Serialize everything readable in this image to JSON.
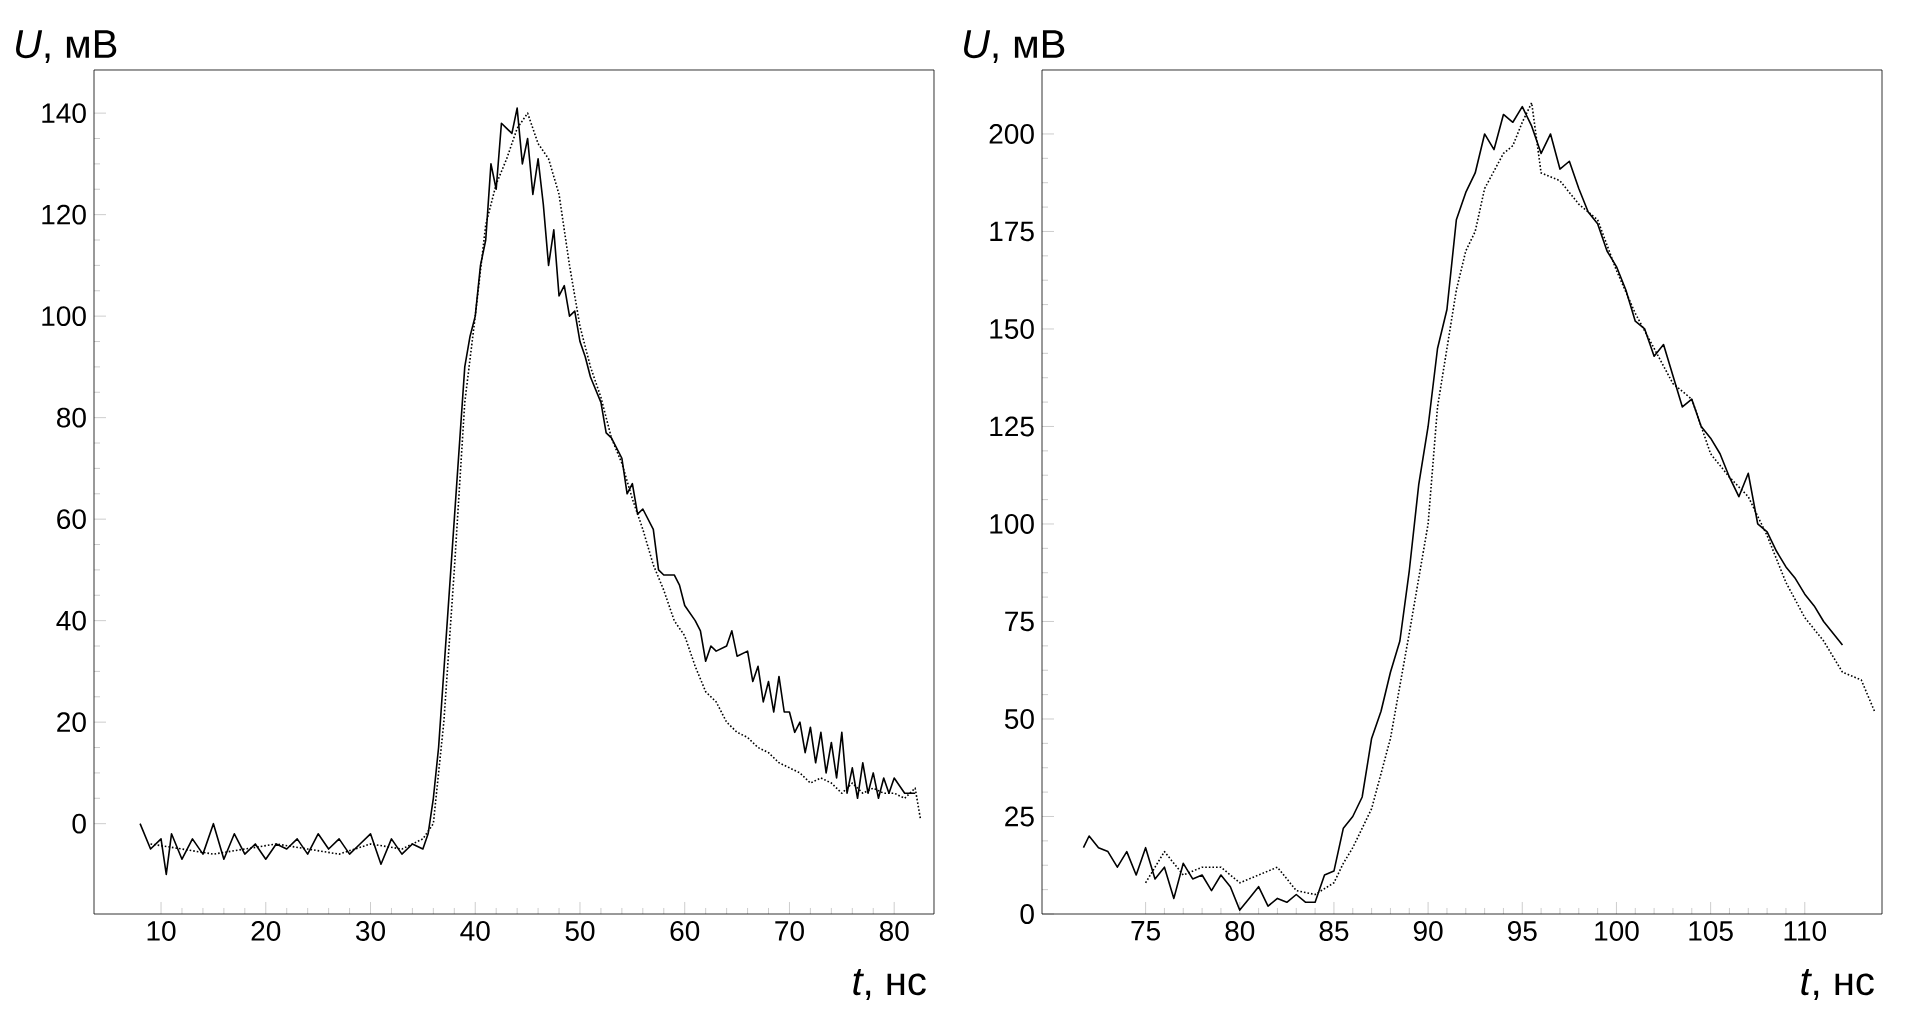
{
  "chart_data": [
    {
      "type": "line",
      "xlabel": "*t*, нс",
      "ylabel": "*U*, мВ",
      "xlim": [
        3.6,
        83.8
      ],
      "ylim": [
        -17.8,
        148.5
      ],
      "xticks": [
        10,
        20,
        30,
        40,
        50,
        60,
        70,
        80
      ],
      "yticks": [
        0,
        20,
        40,
        60,
        80,
        100,
        120,
        140
      ],
      "series": [
        {
          "color": "#000000",
          "line_style": "solid",
          "x": [
            8,
            9,
            10,
            10.5,
            11,
            12,
            13,
            14,
            15,
            16,
            17,
            18,
            19,
            20,
            21,
            22,
            23,
            24,
            25,
            26,
            27,
            28,
            29,
            30,
            31,
            32,
            33,
            34,
            35,
            35.5,
            36,
            36.5,
            37,
            37.5,
            38,
            38.5,
            39,
            39.5,
            40,
            40.5,
            41,
            41.5,
            42,
            42.5,
            43,
            43.5,
            44,
            44.5,
            45,
            45.5,
            46,
            46.5,
            47,
            47.5,
            48,
            48.5,
            49,
            49.5,
            50,
            50.5,
            51,
            52,
            52.5,
            53,
            54,
            54.5,
            55,
            55.5,
            56,
            57,
            57.5,
            58,
            59,
            59.5,
            60,
            61,
            61.5,
            62,
            62.5,
            63,
            64,
            64.5,
            65,
            66,
            66.5,
            67,
            67.5,
            68,
            68.5,
            69,
            69.5,
            70,
            70.5,
            71,
            71.5,
            72,
            72.5,
            73,
            73.5,
            74,
            74.5,
            75,
            75.5,
            76,
            76.5,
            77,
            77.5,
            78,
            78.5,
            79,
            79.5,
            80,
            81,
            82
          ],
          "values": [
            0,
            -5,
            -3,
            -10,
            -2,
            -7,
            -3,
            -6,
            0,
            -7,
            -2,
            -6,
            -4,
            -7,
            -4,
            -5,
            -3,
            -6,
            -2,
            -5,
            -3,
            -6,
            -4,
            -2,
            -8,
            -3,
            -6,
            -4,
            -5,
            -2,
            5,
            15,
            30,
            45,
            60,
            75,
            90,
            96,
            100,
            110,
            115,
            130,
            125,
            138,
            137,
            136,
            141,
            130,
            135,
            124,
            131,
            122,
            110,
            117,
            104,
            106,
            100,
            101,
            95,
            92,
            88,
            83,
            77,
            76,
            72,
            65,
            67,
            61,
            62,
            58,
            50,
            49,
            49,
            47,
            43,
            40,
            38,
            32,
            35,
            34,
            35,
            38,
            33,
            34,
            28,
            31,
            24,
            28,
            22,
            29,
            22,
            22,
            18,
            20,
            14,
            19,
            12,
            18,
            10,
            16,
            9,
            18,
            6,
            11,
            5,
            12,
            6,
            10,
            5,
            9,
            6,
            9,
            6,
            6
          ]
        },
        {
          "color": "#000000",
          "line_style": "dotted",
          "x": [
            9,
            12,
            15,
            18,
            21,
            24,
            27,
            30,
            33,
            35,
            36,
            37,
            38,
            39,
            40,
            41,
            42,
            43,
            44,
            45,
            46,
            47,
            48,
            49,
            50,
            51,
            52,
            53,
            54,
            55,
            56,
            57,
            58,
            59,
            60,
            61,
            62,
            63,
            64,
            65,
            66,
            67,
            68,
            69,
            70,
            71,
            72,
            73,
            74,
            75,
            76,
            77,
            78,
            79,
            80,
            81,
            82,
            82.5
          ],
          "values": [
            -4,
            -5,
            -6,
            -5,
            -4,
            -5,
            -6,
            -4,
            -5,
            -3,
            0,
            20,
            50,
            83,
            100,
            118,
            126,
            131,
            137,
            140,
            134,
            131,
            124,
            110,
            98,
            90,
            84,
            76,
            71,
            64,
            58,
            51,
            46,
            40,
            37,
            31,
            26,
            24,
            20,
            18,
            17,
            15,
            14,
            12,
            11,
            10,
            8,
            9,
            8,
            6,
            8,
            6,
            7,
            6,
            6,
            5,
            7,
            1
          ]
        }
      ]
    },
    {
      "type": "line",
      "xlabel": "*t*, нс",
      "ylabel": "*U*, мВ",
      "xlim": [
        69.5,
        114.1
      ],
      "ylim": [
        0,
        216.4
      ],
      "xticks": [
        75,
        80,
        85,
        90,
        95,
        100,
        105,
        110
      ],
      "yticks": [
        0,
        25,
        50,
        75,
        100,
        125,
        150,
        175,
        200
      ],
      "series": [
        {
          "color": "#000000",
          "line_style": "solid",
          "x": [
            71.7,
            72,
            72.5,
            73,
            73.5,
            74,
            74.5,
            75,
            75.5,
            76,
            76.5,
            77,
            77.5,
            78,
            78.5,
            79,
            79.5,
            80,
            80.5,
            81,
            81.5,
            82,
            82.5,
            83,
            83.5,
            84,
            84.5,
            85,
            85.5,
            86,
            86.5,
            87,
            87.5,
            88,
            88.5,
            89,
            89.5,
            90,
            90.5,
            91,
            91.5,
            92,
            92.5,
            93,
            93.5,
            94,
            94.5,
            95,
            95.5,
            96,
            96.5,
            97,
            97.5,
            98,
            98.5,
            99,
            99.5,
            100,
            100.5,
            101,
            101.5,
            102,
            102.5,
            103,
            103.5,
            104,
            104.5,
            105,
            105.5,
            106,
            106.5,
            107,
            107.5,
            108,
            108.5,
            109,
            109.5,
            110,
            110.5,
            111,
            111.5,
            112
          ],
          "values": [
            17,
            20,
            17,
            16,
            12,
            16,
            10,
            17,
            9,
            12,
            4,
            13,
            9,
            10,
            6,
            10,
            7,
            1,
            4,
            7,
            2,
            4,
            3,
            5,
            3,
            3,
            10,
            11,
            22,
            25,
            30,
            45,
            52,
            62,
            70,
            88,
            110,
            125,
            145,
            155,
            178,
            185,
            190,
            200,
            196,
            205,
            203,
            207,
            202,
            195,
            200,
            191,
            193,
            186,
            180,
            177,
            170,
            166,
            160,
            152,
            150,
            143,
            146,
            138,
            130,
            132,
            125,
            122,
            118,
            112,
            107,
            113,
            100,
            98,
            93,
            89,
            86,
            82,
            79,
            75,
            72,
            69
          ]
        },
        {
          "color": "#000000",
          "line_style": "dotted",
          "x": [
            75,
            76,
            77,
            78,
            79,
            80,
            81,
            82,
            83,
            84,
            85,
            85.5,
            86,
            87,
            88,
            89,
            90,
            90.5,
            91,
            91.5,
            92,
            92.5,
            93,
            94,
            94.5,
            95,
            95.5,
            96,
            97,
            98,
            99,
            100,
            101,
            102,
            103,
            104,
            105,
            106,
            107,
            108,
            109,
            110,
            111,
            112,
            113,
            113.7
          ],
          "values": [
            8,
            16,
            10,
            12,
            12,
            8,
            10,
            12,
            6,
            5,
            8,
            13,
            17,
            27,
            45,
            72,
            100,
            130,
            145,
            160,
            170,
            175,
            186,
            195,
            197,
            203,
            208,
            190,
            188,
            182,
            178,
            165,
            154,
            145,
            136,
            132,
            118,
            112,
            107,
            97,
            85,
            76,
            70,
            62,
            60,
            52
          ]
        }
      ]
    }
  ]
}
